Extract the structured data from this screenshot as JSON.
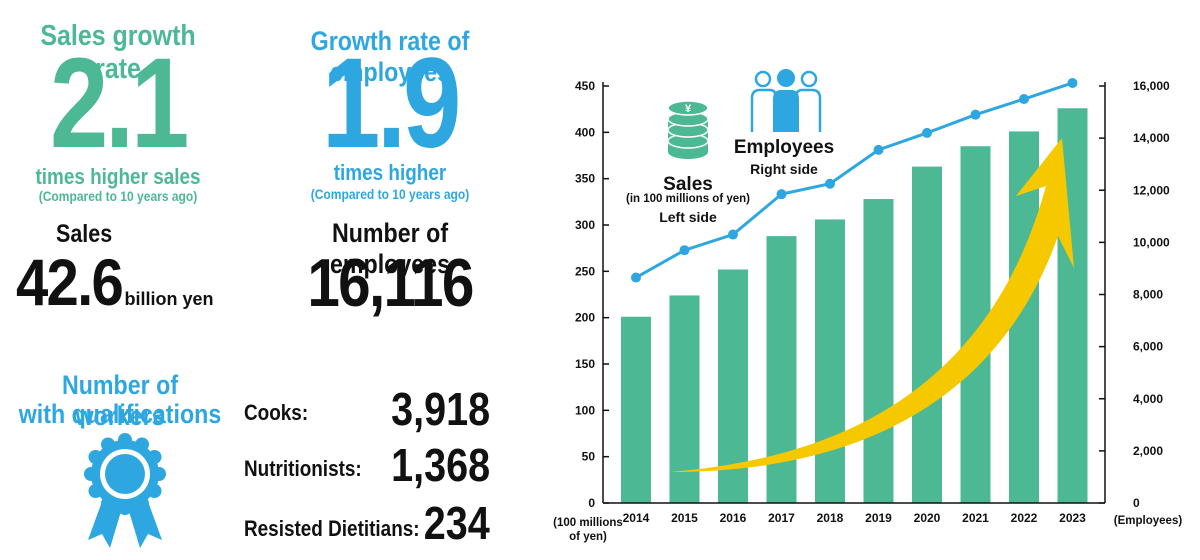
{
  "colors": {
    "green": "#4cb994",
    "blue": "#2ea7e0",
    "line": "#2ea7e0",
    "arrow": "#f5c800",
    "text": "#111111"
  },
  "left": {
    "sales_growth": {
      "title": "Sales growth rate",
      "value": "2.1",
      "caption": "times higher sales",
      "note": "(Compared to 10 years ago)"
    },
    "employee_growth": {
      "title": "Growth rate of employees",
      "value": "1.9",
      "caption": "times higher",
      "note": "(Compared to 10 years ago)"
    },
    "sales": {
      "label": "Sales",
      "value": "42.6",
      "unit": "billion yen"
    },
    "employees": {
      "label": "Number of employees",
      "value": "16,116"
    },
    "qualifications": {
      "title_line1": "Number of workers",
      "title_line2": "with qualifications",
      "icon": "award-ribbon-icon",
      "items": [
        {
          "label": "Cooks:",
          "value": "3,918"
        },
        {
          "label": "Nutritionists:",
          "value": "1,368"
        },
        {
          "label": "Resisted Dietitians:",
          "value": "234"
        }
      ]
    }
  },
  "chart_data": {
    "type": "bar",
    "categories": [
      "2014",
      "2015",
      "2016",
      "2017",
      "2018",
      "2019",
      "2020",
      "2021",
      "2022",
      "2023"
    ],
    "series": [
      {
        "name": "Sales",
        "type": "bar",
        "axis": "left",
        "values": [
          201,
          224,
          252,
          288,
          306,
          328,
          363,
          385,
          401,
          426
        ]
      },
      {
        "name": "Employees",
        "type": "line",
        "axis": "right",
        "values": [
          8650,
          9700,
          10300,
          11850,
          12250,
          13550,
          14200,
          14900,
          15500,
          16116
        ]
      }
    ],
    "left_axis": {
      "ylim": [
        0,
        450
      ],
      "ticks": [
        "0",
        "50",
        "100",
        "150",
        "200",
        "250",
        "300",
        "350",
        "400",
        "450"
      ],
      "unit_line1": "(100 millions",
      "unit_line2": "of yen)"
    },
    "right_axis": {
      "ylim": [
        0,
        16000
      ],
      "ticks": [
        "0",
        "2,000",
        "4,000",
        "6,000",
        "8,000",
        "10,000",
        "12,000",
        "14,000",
        "16,000"
      ],
      "unit": "(Employees)"
    },
    "legend": {
      "sales_title": "Sales",
      "sales_unit": "(in 100 millions of yen)",
      "sales_side": "Left side",
      "sales_icon": "coin-stack-yen-icon",
      "employees_title": "Employees",
      "employees_side": "Right side",
      "employees_icon": "people-icon"
    },
    "grid": false,
    "trend_arrow": true
  }
}
